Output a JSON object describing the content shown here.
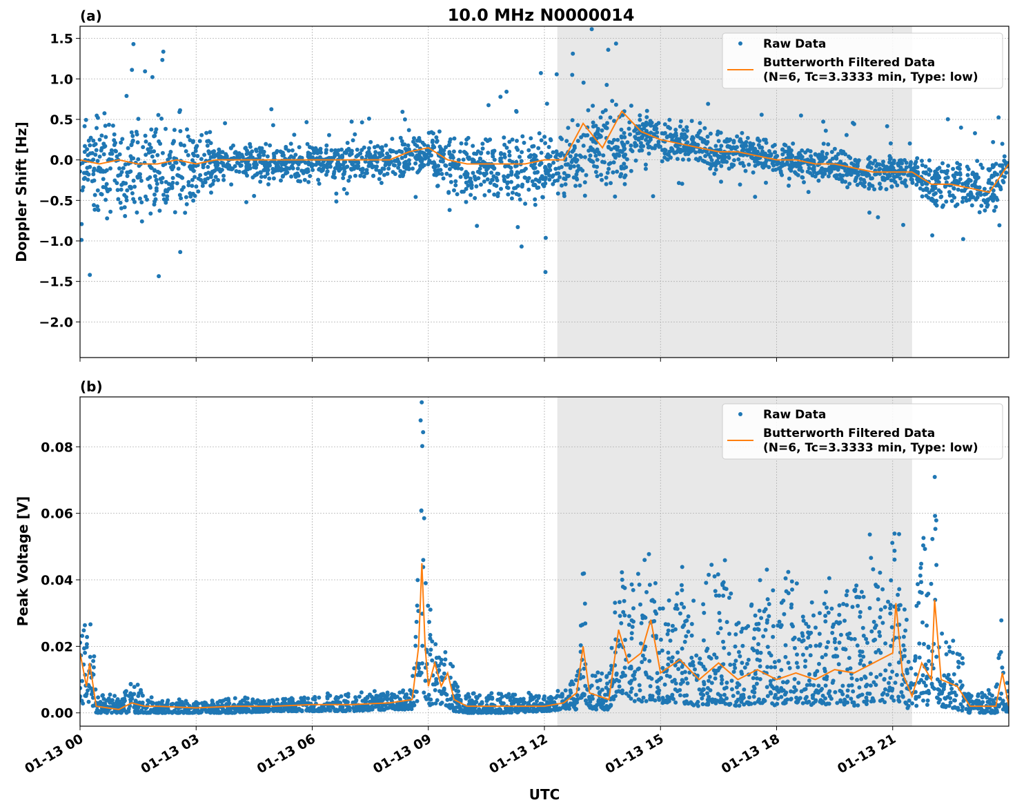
{
  "chart_data": [
    {
      "type": "scatter+line",
      "panel_label": "(a)",
      "title": "10.0 MHz N0000014",
      "xlabel": "",
      "ylabel": "Doppler Shift [Hz]",
      "xlim": [
        "01-13 00:00",
        "01-14 00:00"
      ],
      "ylim": [
        -2.44,
        1.65
      ],
      "yticks": [
        1.5,
        1.0,
        0.5,
        0.0,
        -0.5,
        -1.0,
        -1.5,
        -2.0
      ],
      "ytick_labels": [
        "1.5",
        "1.0",
        "0.5",
        "0.0",
        "−0.5",
        "−1.0",
        "−1.5",
        "−2.0"
      ],
      "grid": true,
      "shaded_interval": [
        "12:20",
        "21:30"
      ],
      "legend": {
        "placement": "upper right",
        "entries": [
          "Raw Data",
          "Butterworth Filtered Data",
          "(N=6, Tc=3.3333 min, Type: low)"
        ]
      },
      "series": [
        {
          "name": "Raw Data",
          "kind": "scatter",
          "color": "#1f77b4",
          "x": [
            "00:00",
            "00:30",
            "01:00",
            "01:30",
            "02:00",
            "02:30",
            "03:00",
            "03:30",
            "04:00",
            "04:30",
            "05:00",
            "05:30",
            "06:00",
            "06:30",
            "07:00",
            "07:30",
            "08:00",
            "08:30",
            "09:00",
            "09:30",
            "10:00",
            "10:30",
            "11:00",
            "11:30",
            "12:00",
            "12:30",
            "13:00",
            "13:30",
            "14:00",
            "14:30",
            "15:00",
            "15:30",
            "16:00",
            "16:30",
            "17:00",
            "17:30",
            "18:00",
            "18:30",
            "19:00",
            "19:30",
            "20:00",
            "20:30",
            "21:00",
            "21:30",
            "22:00",
            "22:30",
            "23:00",
            "23:30",
            "24:00"
          ],
          "lower": [
            -0.9,
            -0.9,
            -0.9,
            -0.9,
            -0.9,
            -0.9,
            -0.9,
            -0.35,
            -0.35,
            -0.35,
            -0.35,
            -0.35,
            -0.35,
            -0.35,
            -0.35,
            -0.35,
            -0.35,
            -0.25,
            -0.25,
            -0.7,
            -0.7,
            -0.7,
            -0.7,
            -0.7,
            -0.7,
            -0.7,
            -0.6,
            -0.6,
            -0.6,
            0.0,
            -0.1,
            -0.15,
            -0.2,
            -0.25,
            -0.2,
            -0.25,
            -0.3,
            -0.3,
            -0.35,
            -0.35,
            -0.4,
            -0.45,
            -0.45,
            -0.45,
            -0.75,
            -0.75,
            -0.8,
            -0.85,
            -0.5
          ],
          "upper": [
            0.7,
            0.7,
            0.7,
            0.7,
            0.7,
            0.7,
            0.7,
            0.3,
            0.3,
            0.3,
            0.3,
            0.3,
            0.3,
            0.3,
            0.3,
            0.3,
            0.3,
            0.4,
            0.4,
            0.5,
            0.5,
            0.5,
            0.5,
            0.5,
            0.5,
            0.5,
            0.9,
            0.9,
            0.9,
            0.7,
            0.6,
            0.55,
            0.5,
            0.45,
            0.4,
            0.35,
            0.3,
            0.3,
            0.25,
            0.25,
            0.2,
            0.15,
            0.15,
            0.15,
            0.15,
            0.15,
            0.1,
            0.05,
            0.4
          ]
        },
        {
          "name": "Butterworth Filtered Data",
          "kind": "line",
          "color": "#ff7f0e",
          "x": [
            "00:00",
            "00:30",
            "01:00",
            "01:30",
            "02:00",
            "02:30",
            "03:00",
            "03:30",
            "04:00",
            "04:30",
            "05:00",
            "05:30",
            "06:00",
            "06:30",
            "07:00",
            "07:30",
            "08:00",
            "08:30",
            "09:00",
            "09:30",
            "10:00",
            "10:30",
            "11:00",
            "11:30",
            "12:00",
            "12:30",
            "13:00",
            "13:30",
            "14:00",
            "14:30",
            "15:00",
            "15:30",
            "16:00",
            "16:30",
            "17:00",
            "17:30",
            "18:00",
            "18:30",
            "19:00",
            "19:30",
            "20:00",
            "20:30",
            "21:00",
            "21:30",
            "22:00",
            "22:30",
            "23:00",
            "23:30",
            "24:00"
          ],
          "y": [
            0.0,
            -0.05,
            0.0,
            -0.05,
            -0.05,
            0.0,
            -0.05,
            0.0,
            0.0,
            0.0,
            0.0,
            0.0,
            0.0,
            0.0,
            0.0,
            0.0,
            0.0,
            0.1,
            0.15,
            0.0,
            -0.05,
            -0.05,
            -0.05,
            -0.05,
            0.0,
            0.0,
            0.45,
            0.15,
            0.6,
            0.35,
            0.25,
            0.2,
            0.15,
            0.1,
            0.1,
            0.05,
            0.0,
            0.0,
            -0.05,
            -0.05,
            -0.1,
            -0.15,
            -0.15,
            -0.15,
            -0.3,
            -0.3,
            -0.35,
            -0.4,
            -0.05
          ]
        }
      ]
    },
    {
      "type": "scatter+line",
      "panel_label": "(b)",
      "xlabel": "UTC",
      "ylabel": "Peak Voltage [V]",
      "xlim": [
        "01-13 00:00",
        "01-14 00:00"
      ],
      "ylim": [
        -0.004,
        0.095
      ],
      "yticks": [
        0.0,
        0.02,
        0.04,
        0.06,
        0.08
      ],
      "ytick_labels": [
        "0.00",
        "0.02",
        "0.04",
        "0.06",
        "0.08"
      ],
      "xticks": [
        "00:00",
        "03:00",
        "06:00",
        "09:00",
        "12:00",
        "15:00",
        "18:00",
        "21:00"
      ],
      "xtick_labels": [
        "01-13 00",
        "01-13 03",
        "01-13 06",
        "01-13 09",
        "01-13 12",
        "01-13 15",
        "01-13 18",
        "01-13 21"
      ],
      "grid": true,
      "shaded_interval": [
        "12:20",
        "21:30"
      ],
      "legend": {
        "placement": "upper right",
        "entries": [
          "Raw Data",
          "Butterworth Filtered Data",
          "(N=6, Tc=3.3333 min, Type: low)"
        ]
      },
      "series": [
        {
          "name": "Raw Data",
          "kind": "scatter",
          "color": "#1f77b4",
          "x": [
            "00:00",
            "00:10",
            "00:15",
            "00:25",
            "01:00",
            "01:20",
            "01:40",
            "02:00",
            "03:00",
            "04:00",
            "05:00",
            "06:00",
            "07:00",
            "08:00",
            "08:35",
            "08:45",
            "08:50",
            "08:55",
            "09:00",
            "09:10",
            "09:20",
            "09:30",
            "09:40",
            "10:00",
            "11:00",
            "12:00",
            "12:30",
            "12:50",
            "13:00",
            "13:10",
            "13:40",
            "13:55",
            "14:10",
            "14:30",
            "14:45",
            "15:00",
            "15:30",
            "16:00",
            "16:30",
            "17:00",
            "17:30",
            "18:00",
            "18:30",
            "19:00",
            "19:30",
            "20:00",
            "20:30",
            "21:00",
            "21:05",
            "21:15",
            "21:30",
            "21:45",
            "22:00",
            "22:05",
            "22:15",
            "22:40",
            "23:00",
            "23:40",
            "23:50",
            "24:00"
          ],
          "lower": [
            0.003,
            0.002,
            0.003,
            0.0,
            0.0,
            0.0,
            0.0,
            0.0,
            0.0,
            0.0,
            0.0005,
            0.0005,
            0.0005,
            0.001,
            0.001,
            0.003,
            0.01,
            0.003,
            0.002,
            0.003,
            0.002,
            0.002,
            0.0005,
            0.0,
            0.0,
            0.0005,
            0.001,
            0.001,
            0.005,
            0.001,
            0.001,
            0.006,
            0.004,
            0.003,
            0.004,
            0.003,
            0.003,
            0.002,
            0.003,
            0.002,
            0.003,
            0.002,
            0.003,
            0.002,
            0.003,
            0.002,
            0.003,
            0.003,
            0.005,
            0.002,
            0.001,
            0.003,
            0.002,
            0.005,
            0.002,
            0.001,
            0.0,
            0.0,
            0.001,
            0.0
          ],
          "upper": [
            0.03,
            0.022,
            0.035,
            0.006,
            0.004,
            0.009,
            0.005,
            0.004,
            0.003,
            0.004,
            0.004,
            0.005,
            0.005,
            0.006,
            0.008,
            0.06,
            0.09,
            0.05,
            0.03,
            0.02,
            0.016,
            0.02,
            0.01,
            0.006,
            0.006,
            0.005,
            0.006,
            0.012,
            0.047,
            0.012,
            0.01,
            0.049,
            0.035,
            0.045,
            0.053,
            0.03,
            0.04,
            0.03,
            0.046,
            0.03,
            0.035,
            0.038,
            0.035,
            0.03,
            0.04,
            0.04,
            0.048,
            0.045,
            0.062,
            0.03,
            0.02,
            0.056,
            0.04,
            0.072,
            0.025,
            0.02,
            0.006,
            0.006,
            0.035,
            0.004
          ]
        },
        {
          "name": "Butterworth Filtered Data",
          "kind": "line",
          "color": "#ff7f0e",
          "x": [
            "00:00",
            "00:10",
            "00:15",
            "00:25",
            "01:00",
            "01:20",
            "01:40",
            "02:00",
            "03:00",
            "04:00",
            "05:00",
            "06:00",
            "07:00",
            "08:00",
            "08:35",
            "08:45",
            "08:50",
            "08:55",
            "09:00",
            "09:10",
            "09:20",
            "09:30",
            "09:40",
            "10:00",
            "11:00",
            "12:00",
            "12:30",
            "12:50",
            "13:00",
            "13:10",
            "13:40",
            "13:55",
            "14:10",
            "14:30",
            "14:45",
            "15:00",
            "15:30",
            "16:00",
            "16:30",
            "17:00",
            "17:30",
            "18:00",
            "18:30",
            "19:00",
            "19:30",
            "20:00",
            "20:30",
            "21:00",
            "21:05",
            "21:15",
            "21:30",
            "21:45",
            "22:00",
            "22:05",
            "22:15",
            "22:40",
            "23:00",
            "23:40",
            "23:50",
            "24:00"
          ],
          "y": [
            0.018,
            0.008,
            0.015,
            0.002,
            0.001,
            0.003,
            0.002,
            0.002,
            0.0015,
            0.002,
            0.002,
            0.0025,
            0.0025,
            0.003,
            0.004,
            0.02,
            0.045,
            0.02,
            0.008,
            0.015,
            0.008,
            0.012,
            0.004,
            0.002,
            0.002,
            0.002,
            0.003,
            0.006,
            0.02,
            0.006,
            0.004,
            0.025,
            0.015,
            0.018,
            0.028,
            0.012,
            0.016,
            0.01,
            0.015,
            0.01,
            0.013,
            0.01,
            0.012,
            0.01,
            0.013,
            0.012,
            0.015,
            0.018,
            0.033,
            0.012,
            0.005,
            0.015,
            0.01,
            0.034,
            0.01,
            0.008,
            0.002,
            0.002,
            0.012,
            0.002
          ]
        }
      ]
    }
  ],
  "colors": {
    "raw": "#1f77b4",
    "filtered": "#ff7f0e",
    "shade": "#e8e8e8",
    "grid": "#b0b0b0"
  }
}
